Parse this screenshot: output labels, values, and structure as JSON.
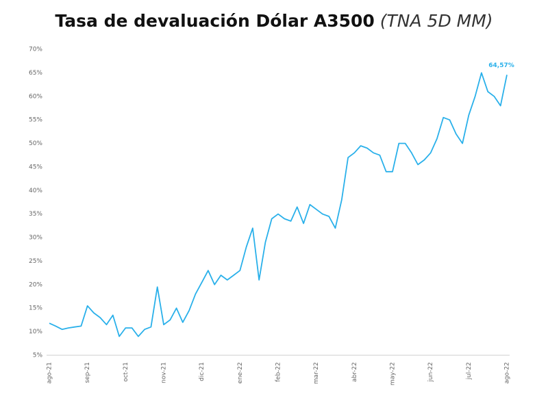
{
  "chart_data": {
    "type": "line",
    "title": "Tasa de devaluación Dólar A3500",
    "subtitle": "(TNA 5D MM)",
    "categories": [
      "ago-21",
      null,
      null,
      null,
      null,
      null,
      "sep-21",
      null,
      null,
      null,
      null,
      null,
      "oct-21",
      null,
      null,
      null,
      null,
      null,
      "nov-21",
      null,
      null,
      null,
      null,
      null,
      "dic-21",
      null,
      null,
      null,
      null,
      null,
      "ene-22",
      null,
      null,
      null,
      null,
      null,
      "feb-22",
      null,
      null,
      null,
      null,
      null,
      "mar-22",
      null,
      null,
      null,
      null,
      null,
      "abr-22",
      null,
      null,
      null,
      null,
      null,
      "may-22",
      null,
      null,
      null,
      null,
      null,
      "jun-22",
      null,
      null,
      null,
      null,
      null,
      "jul-22",
      null,
      null,
      null,
      null,
      null,
      "ago-22"
    ],
    "series": [
      {
        "name": "TNA 5D MM",
        "color": "#29b0ea",
        "values": [
          11.8,
          11.2,
          10.5,
          10.8,
          11,
          11.2,
          15.5,
          14,
          13,
          11.5,
          13.5,
          9,
          10.8,
          10.8,
          9,
          10.5,
          11,
          19.5,
          11.5,
          12.5,
          15,
          12,
          14.5,
          18,
          20.5,
          23,
          20,
          22,
          21,
          22,
          23,
          28,
          32,
          21,
          29,
          34,
          35,
          34,
          33.5,
          36.5,
          33,
          37,
          36,
          35,
          34.5,
          32,
          38,
          47,
          48,
          49.5,
          49,
          48,
          47.5,
          44,
          44,
          50,
          50,
          48,
          45.5,
          46.5,
          48,
          51,
          55.5,
          55,
          52,
          50,
          56,
          60,
          65,
          61,
          60,
          58,
          64.57
        ],
        "value_labels": [
          null,
          null,
          null,
          null,
          null,
          null,
          null,
          null,
          null,
          null,
          null,
          null,
          null,
          null,
          null,
          null,
          null,
          null,
          null,
          null,
          null,
          null,
          null,
          null,
          null,
          null,
          null,
          null,
          null,
          null,
          null,
          null,
          null,
          null,
          null,
          null,
          null,
          null,
          null,
          null,
          null,
          null,
          null,
          null,
          null,
          null,
          null,
          null,
          null,
          null,
          null,
          null,
          null,
          null,
          null,
          null,
          null,
          null,
          null,
          null,
          null,
          null,
          null,
          null,
          null,
          null,
          null,
          null,
          null,
          null,
          null,
          null,
          "64,57%"
        ]
      }
    ],
    "ylim": [
      5,
      70
    ],
    "yticks": [
      {
        "value": 5,
        "label": "5%"
      },
      {
        "value": 10,
        "label": "10%"
      },
      {
        "value": 15,
        "label": "15%"
      },
      {
        "value": 20,
        "label": "20%"
      },
      {
        "value": 25,
        "label": "25%"
      },
      {
        "value": 30,
        "label": "30%"
      },
      {
        "value": 35,
        "label": "35%"
      },
      {
        "value": 40,
        "label": "40%"
      },
      {
        "value": 45,
        "label": "45%"
      },
      {
        "value": 50,
        "label": "50%"
      },
      {
        "value": 55,
        "label": "55%"
      },
      {
        "value": 60,
        "label": "60%"
      },
      {
        "value": 65,
        "label": "65%"
      },
      {
        "value": 70,
        "label": "70%"
      }
    ],
    "grid": false
  }
}
